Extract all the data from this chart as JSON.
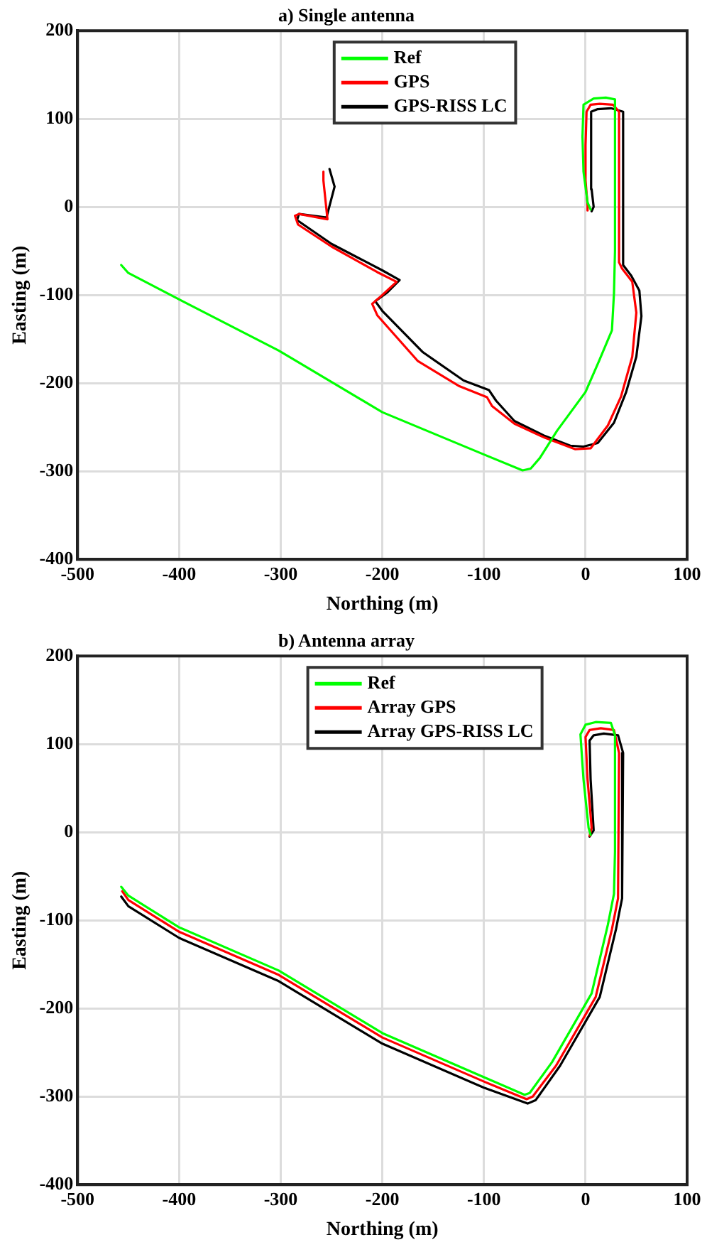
{
  "chart_data": [
    {
      "type": "line",
      "title": "a) Single antenna",
      "xlabel": "Northing (m)",
      "ylabel": "Easting (m)",
      "xlim": [
        -500,
        100
      ],
      "xticks": [
        -500,
        -400,
        -300,
        -200,
        -100,
        0,
        100
      ],
      "ylim": [
        -400,
        200
      ],
      "yticks": [
        -400,
        -300,
        -200,
        -100,
        0,
        100,
        200
      ],
      "grid": true,
      "legend": "top",
      "marker": "none",
      "line_style": "solid",
      "series": [
        {
          "name": "Ref",
          "color": "#00ff00",
          "x": [
            5,
            2,
            -2,
            -3,
            -2,
            8,
            20,
            29,
            29,
            28,
            26,
            14,
            0,
            -28,
            -45,
            -54,
            -62,
            -100,
            -200,
            -302,
            -400,
            -450,
            -457
          ],
          "values": [
            -3,
            5,
            40,
            80,
            116,
            123,
            124,
            122,
            -50,
            -98,
            -140,
            -173,
            -210,
            -254,
            -285,
            -297,
            -299,
            -281,
            -233,
            -163,
            -105,
            -75,
            -66
          ]
        },
        {
          "name": "GPS",
          "color": "#ff0000",
          "x": [
            2,
            2,
            0,
            0,
            1,
            5,
            14,
            27,
            33,
            33,
            36,
            46,
            50,
            46,
            35,
            22,
            5,
            -10,
            -40,
            -70,
            -92,
            -97,
            -125,
            -165,
            -205,
            -210,
            -200,
            -186,
            -205,
            -250,
            -283,
            -286,
            -282,
            -254,
            -258,
            -258
          ],
          "values": [
            -4,
            2,
            30,
            70,
            108,
            116,
            117,
            116,
            108,
            -63,
            -70,
            -85,
            -120,
            -170,
            -215,
            -248,
            -274,
            -275,
            -262,
            -246,
            -226,
            -216,
            -203,
            -175,
            -123,
            -110,
            -100,
            -85,
            -74,
            -45,
            -20,
            -10,
            -8,
            -14,
            30,
            40
          ]
        },
        {
          "name": "GPS-RISS LC",
          "color": "#000000",
          "x": [
            6,
            8,
            6,
            5,
            6,
            12,
            25,
            37,
            37,
            45,
            53,
            55,
            50,
            40,
            28,
            12,
            -2,
            -15,
            -40,
            -70,
            -88,
            -95,
            -120,
            -160,
            -200,
            -207,
            -195,
            -183,
            -200,
            -250,
            -284,
            -282,
            -255,
            -247,
            -252
          ],
          "values": [
            -5,
            0,
            20,
            60,
            108,
            111,
            112,
            108,
            -66,
            -78,
            -95,
            -124,
            -170,
            -210,
            -245,
            -268,
            -272,
            -271,
            -260,
            -243,
            -220,
            -208,
            -197,
            -165,
            -118,
            -107,
            -97,
            -83,
            -72,
            -42,
            -15,
            -8,
            -12,
            23,
            43
          ]
        }
      ]
    },
    {
      "type": "line",
      "title": "b) Antenna array",
      "xlabel": "Northing (m)",
      "ylabel": "Easting (m)",
      "xlim": [
        -500,
        100
      ],
      "xticks": [
        -500,
        -400,
        -300,
        -200,
        -100,
        0,
        100
      ],
      "ylim": [
        -400,
        200
      ],
      "yticks": [
        -400,
        -300,
        -200,
        -100,
        0,
        100,
        200
      ],
      "grid": true,
      "legend": "top",
      "marker": "none",
      "line_style": "solid",
      "series": [
        {
          "name": "Ref",
          "color": "#00ff00",
          "x": [
            5,
            3,
            -2,
            -5,
            0,
            10,
            25,
            29,
            29,
            28,
            22,
            6,
            -33,
            -55,
            -60,
            -100,
            -200,
            -302,
            -400,
            -450,
            -457
          ],
          "values": [
            -3,
            5,
            60,
            111,
            122,
            125,
            124,
            110,
            -22,
            -70,
            -105,
            -183,
            -261,
            -296,
            -298,
            -278,
            -228,
            -157,
            -108,
            -72,
            -62
          ]
        },
        {
          "name": "Array GPS",
          "color": "#ff0000",
          "x": [
            4,
            6,
            2,
            0,
            4,
            15,
            28,
            33,
            32,
            26,
            10,
            -29,
            -52,
            -58,
            -100,
            -200,
            -302,
            -400,
            -450,
            -456
          ],
          "values": [
            -4,
            5,
            60,
            108,
            116,
            118,
            116,
            90,
            -75,
            -110,
            -187,
            -265,
            -300,
            -303,
            -283,
            -233,
            -162,
            -113,
            -77,
            -67
          ]
        },
        {
          "name": "Array GPS-RISS LC",
          "color": "#000000",
          "x": [
            4,
            8,
            5,
            4,
            8,
            18,
            32,
            37,
            36,
            30,
            14,
            -25,
            -49,
            -57,
            -100,
            -200,
            -302,
            -400,
            -450,
            -457
          ],
          "values": [
            -5,
            2,
            60,
            104,
            110,
            112,
            110,
            90,
            -75,
            -110,
            -187,
            -265,
            -304,
            -308,
            -290,
            -240,
            -169,
            -120,
            -84,
            -73
          ]
        }
      ]
    }
  ]
}
